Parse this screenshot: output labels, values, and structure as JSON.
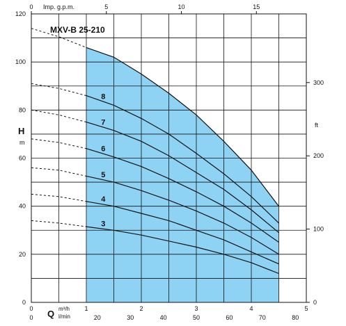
{
  "chart_data": {
    "type": "line",
    "title": "MXV-B 25-210",
    "left_axis": {
      "label_big": "H",
      "label_small": "m",
      "ticks": [
        0,
        20,
        40,
        60,
        80,
        100,
        120
      ],
      "range": [
        0,
        120
      ]
    },
    "right_axis": {
      "label": "ft",
      "ticks": [
        0,
        100,
        200,
        300
      ]
    },
    "top_axis": {
      "label": "Imp. g.p.m.",
      "ticks": [
        0,
        5,
        10,
        15
      ]
    },
    "bottom_axis_m3h": {
      "label_big": "Q",
      "label_small": "m³/h",
      "ticks": [
        0,
        1,
        2,
        3,
        4,
        5
      ],
      "range": [
        0,
        5
      ]
    },
    "bottom_axis_lmin": {
      "label": "l/min",
      "ticks": [
        0,
        20,
        30,
        40,
        50,
        60,
        70,
        80
      ]
    },
    "operating_range_m3h": [
      1,
      4.5
    ],
    "limit_curve": {
      "x": [
        1,
        1.5,
        2,
        2.5,
        3,
        3.5,
        4,
        4.5
      ],
      "y": [
        106,
        102,
        95,
        87,
        78,
        67,
        55,
        40
      ]
    },
    "series": [
      {
        "name": "3",
        "x": [
          0,
          0.5,
          1,
          1.5,
          2,
          2.5,
          3,
          3.5,
          4,
          4.5
        ],
        "y": [
          34,
          33,
          31.5,
          30,
          28,
          25.5,
          23,
          20,
          16.5,
          12
        ]
      },
      {
        "name": "4",
        "x": [
          0,
          0.5,
          1,
          1.5,
          2,
          2.5,
          3,
          3.5,
          4,
          4.5
        ],
        "y": [
          45,
          44,
          42,
          40,
          37,
          34,
          30,
          26,
          21,
          16
        ]
      },
      {
        "name": "5",
        "x": [
          0,
          0.5,
          1,
          1.5,
          2,
          2.5,
          3,
          3.5,
          4,
          4.5
        ],
        "y": [
          56,
          55,
          52.5,
          50,
          46.5,
          42.5,
          38,
          33,
          27,
          20
        ]
      },
      {
        "name": "6",
        "x": [
          0,
          0.5,
          1,
          1.5,
          2,
          2.5,
          3,
          3.5,
          4,
          4.5
        ],
        "y": [
          68,
          66.5,
          64,
          60.5,
          56.5,
          51.5,
          46,
          40,
          33,
          25
        ]
      },
      {
        "name": "7",
        "x": [
          0,
          0.5,
          1,
          1.5,
          2,
          2.5,
          3,
          3.5,
          4,
          4.5
        ],
        "y": [
          80,
          78,
          75,
          71.5,
          67,
          61,
          54,
          47,
          38.5,
          29
        ]
      },
      {
        "name": "8",
        "x": [
          0,
          0.5,
          1,
          1.5,
          2,
          2.5,
          3,
          3.5,
          4,
          4.5
        ],
        "y": [
          91,
          89,
          86,
          82,
          76.5,
          70,
          62,
          53.5,
          44,
          33
        ]
      },
      {
        "name": "",
        "x": [
          0,
          0.5,
          1
        ],
        "y": [
          114,
          110.5,
          106
        ]
      }
    ],
    "grid": true,
    "colors": {
      "fill": "#8ed3f4",
      "line": "#111111"
    }
  }
}
